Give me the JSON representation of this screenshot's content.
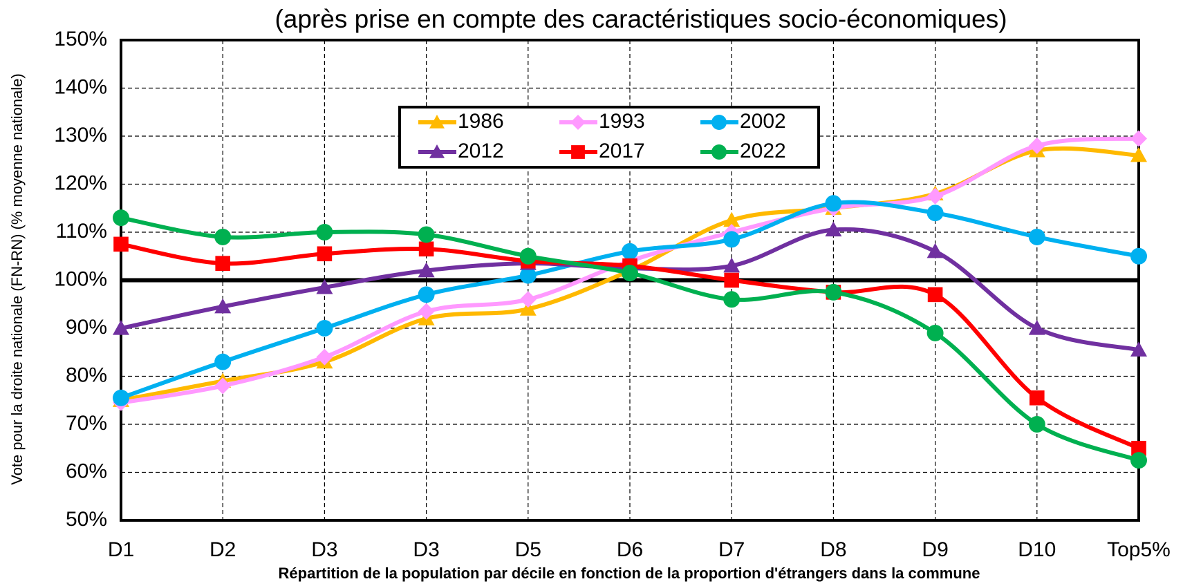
{
  "chart_data": {
    "type": "line",
    "subtitle": "(après prise en compte des caractéristiques socio-économiques)",
    "x_label": "Répartition de la population par décile en fonction de la proportion d'étrangers dans la commune",
    "y_label": "Vote pour la droite nationale (FN-RN) (% moyenne nationale)",
    "categories": [
      "D1",
      "D2",
      "D3",
      "D3",
      "D5",
      "D6",
      "D7",
      "D8",
      "D9",
      "D10",
      "Top5%"
    ],
    "series": [
      {
        "name": "1986",
        "color": "#ffb900",
        "marker": "triangle",
        "values": [
          75,
          79,
          83,
          92,
          94,
          102,
          112.5,
          115,
          118,
          127,
          126
        ]
      },
      {
        "name": "1993",
        "color": "#ff99ff",
        "marker": "diamond",
        "values": [
          74.5,
          78,
          84,
          93.5,
          96,
          104,
          110,
          115,
          117.5,
          128,
          129.5
        ]
      },
      {
        "name": "2002",
        "color": "#00b0f0",
        "marker": "circle",
        "values": [
          75.5,
          83,
          90,
          97,
          101,
          106,
          108.5,
          116,
          114,
          109,
          105
        ]
      },
      {
        "name": "2012",
        "color": "#7030a0",
        "marker": "triangle",
        "values": [
          90,
          94.5,
          98.5,
          102,
          103.5,
          102.5,
          103,
          110.5,
          106,
          90,
          85.5
        ]
      },
      {
        "name": "2017",
        "color": "#ff0000",
        "marker": "square",
        "values": [
          107.5,
          103.5,
          105.5,
          106.5,
          104,
          103,
          100,
          97.5,
          97,
          75.5,
          65
        ]
      },
      {
        "name": "2022",
        "color": "#00b050",
        "marker": "circle",
        "values": [
          113,
          109,
          110,
          109.5,
          105,
          101.5,
          96,
          97.5,
          89,
          70,
          62.5
        ]
      }
    ],
    "reference_line": 100,
    "ylim": [
      50,
      150
    ],
    "yticks": [
      {
        "value": 50,
        "label": "50%"
      },
      {
        "value": 60,
        "label": "60%"
      },
      {
        "value": 70,
        "label": "70%"
      },
      {
        "value": 80,
        "label": "80%"
      },
      {
        "value": 90,
        "label": "90%"
      },
      {
        "value": 100,
        "label": "100%"
      },
      {
        "value": 110,
        "label": "110%"
      },
      {
        "value": 120,
        "label": "120%"
      },
      {
        "value": 130,
        "label": "130%"
      },
      {
        "value": 140,
        "label": "140%"
      },
      {
        "value": 150,
        "label": "150%"
      }
    ],
    "grid": true
  }
}
